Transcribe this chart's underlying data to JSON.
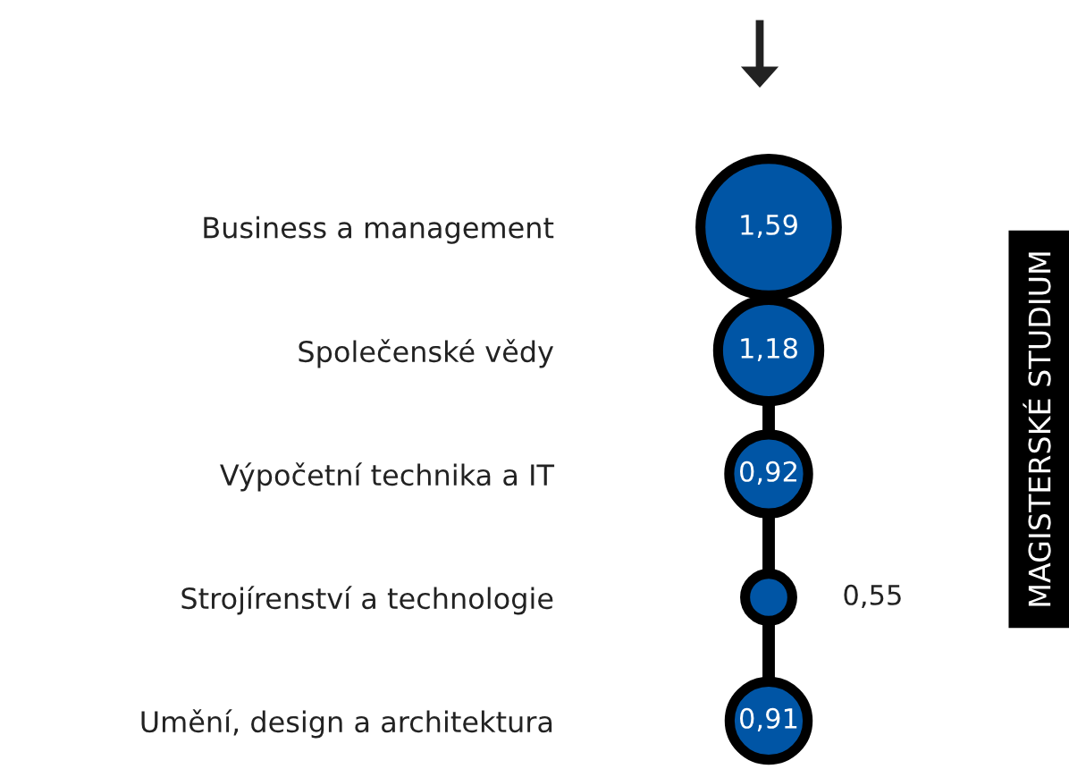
{
  "chart_data": {
    "type": "other",
    "categories": [
      "Business a management",
      "Společenské vědy",
      "Výpočetní technika a IT",
      "Strojírenství a technologie",
      "Umění, design a architektura"
    ],
    "values": [
      1.59,
      1.18,
      0.92,
      0.55,
      0.91
    ],
    "value_labels": [
      "1,59",
      "1,18",
      "0,92",
      "0,55",
      "0,91"
    ],
    "color": "#0055a5",
    "annotations": [
      "MAGISTERSKÉ STUDIUM"
    ]
  }
}
